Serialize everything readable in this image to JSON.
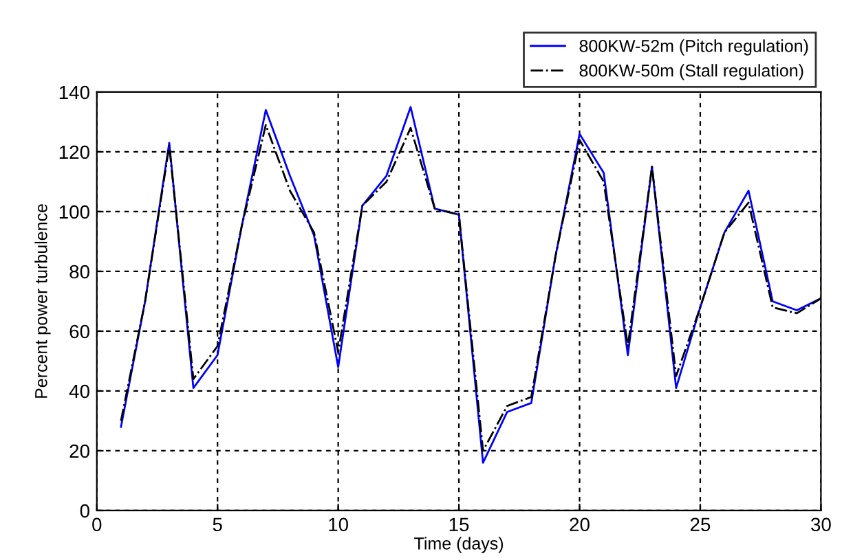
{
  "chart_data": {
    "type": "line",
    "xlabel": "Time (days)",
    "ylabel": "Percent power turbulence",
    "x": [
      1,
      2,
      3,
      4,
      5,
      6,
      7,
      8,
      9,
      10,
      11,
      12,
      13,
      14,
      15,
      16,
      17,
      18,
      19,
      20,
      21,
      22,
      23,
      24,
      25,
      26,
      27,
      28,
      29,
      30
    ],
    "series": [
      {
        "name": "800KW-52m (Pitch regulation)",
        "color": "#0000ff",
        "line_style": "solid",
        "values": [
          28,
          70,
          123,
          41,
          52,
          95,
          134,
          112,
          92,
          48,
          102,
          112,
          135,
          101,
          99,
          16,
          33,
          36,
          85,
          126,
          113,
          52,
          115,
          41,
          68,
          93,
          107,
          70,
          67,
          71
        ]
      },
      {
        "name": "800KW-50m (Stall regulation)",
        "color": "#000000",
        "line_style": "dashdot",
        "values": [
          30,
          70,
          122,
          44,
          55,
          95,
          129,
          107,
          93,
          53,
          102,
          110,
          128,
          101,
          99,
          20,
          35,
          38,
          85,
          124,
          110,
          55,
          115,
          45,
          68,
          93,
          103,
          68,
          66,
          71
        ]
      }
    ],
    "xlim": [
      0,
      30
    ],
    "xticks": [
      0,
      5,
      10,
      15,
      20,
      25,
      30
    ],
    "ylim": [
      0,
      140
    ],
    "yticks": [
      0,
      20,
      40,
      60,
      80,
      100,
      120,
      140
    ],
    "grid": true,
    "legend": "top right",
    "marker": "none"
  }
}
